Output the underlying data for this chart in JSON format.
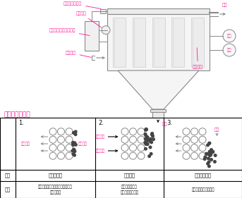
{
  "pink": "#FF1493",
  "gray": "#888888",
  "light_gray": "#CCCCCC",
  "dark_gray": "#555555",
  "black": "#000000",
  "white": "#FFFFFF",
  "section_title": "払い落とし機構",
  "label_逆洗エアバルブ": "逆洗エアバルブ",
  "label_圧縮エア": "圧縮エア",
  "label_コントロールボックス": "コントロールボックス",
  "label_粉体エア": "粉体エア",
  "label_排気": "排気",
  "label_絶圧": "絶圧",
  "label_静圧": "静圧",
  "label_フィルタ": "フィルタ",
  "label_粉体": "粉体",
  "mech1": "粒子の捕集",
  "mech2": "逆洗機構",
  "mech3": "自重落下捕集",
  "feat1": "ろ材が緻密に積結されているため\n濡れがない",
  "feat2": "ろ材がたわまず\n粉塵の飛散がない",
  "feat3": "ろ材への再付着がない",
  "label_清浄空気": "清浄空気",
  "label_含塵空気": "含塵空気",
  "label_逆洗エア": "逆洗エア",
  "label_落下": "落下",
  "label_1": "1.",
  "label_2": "2.",
  "label_3": "3.",
  "label_機構": "機構",
  "label_特長": "特長"
}
